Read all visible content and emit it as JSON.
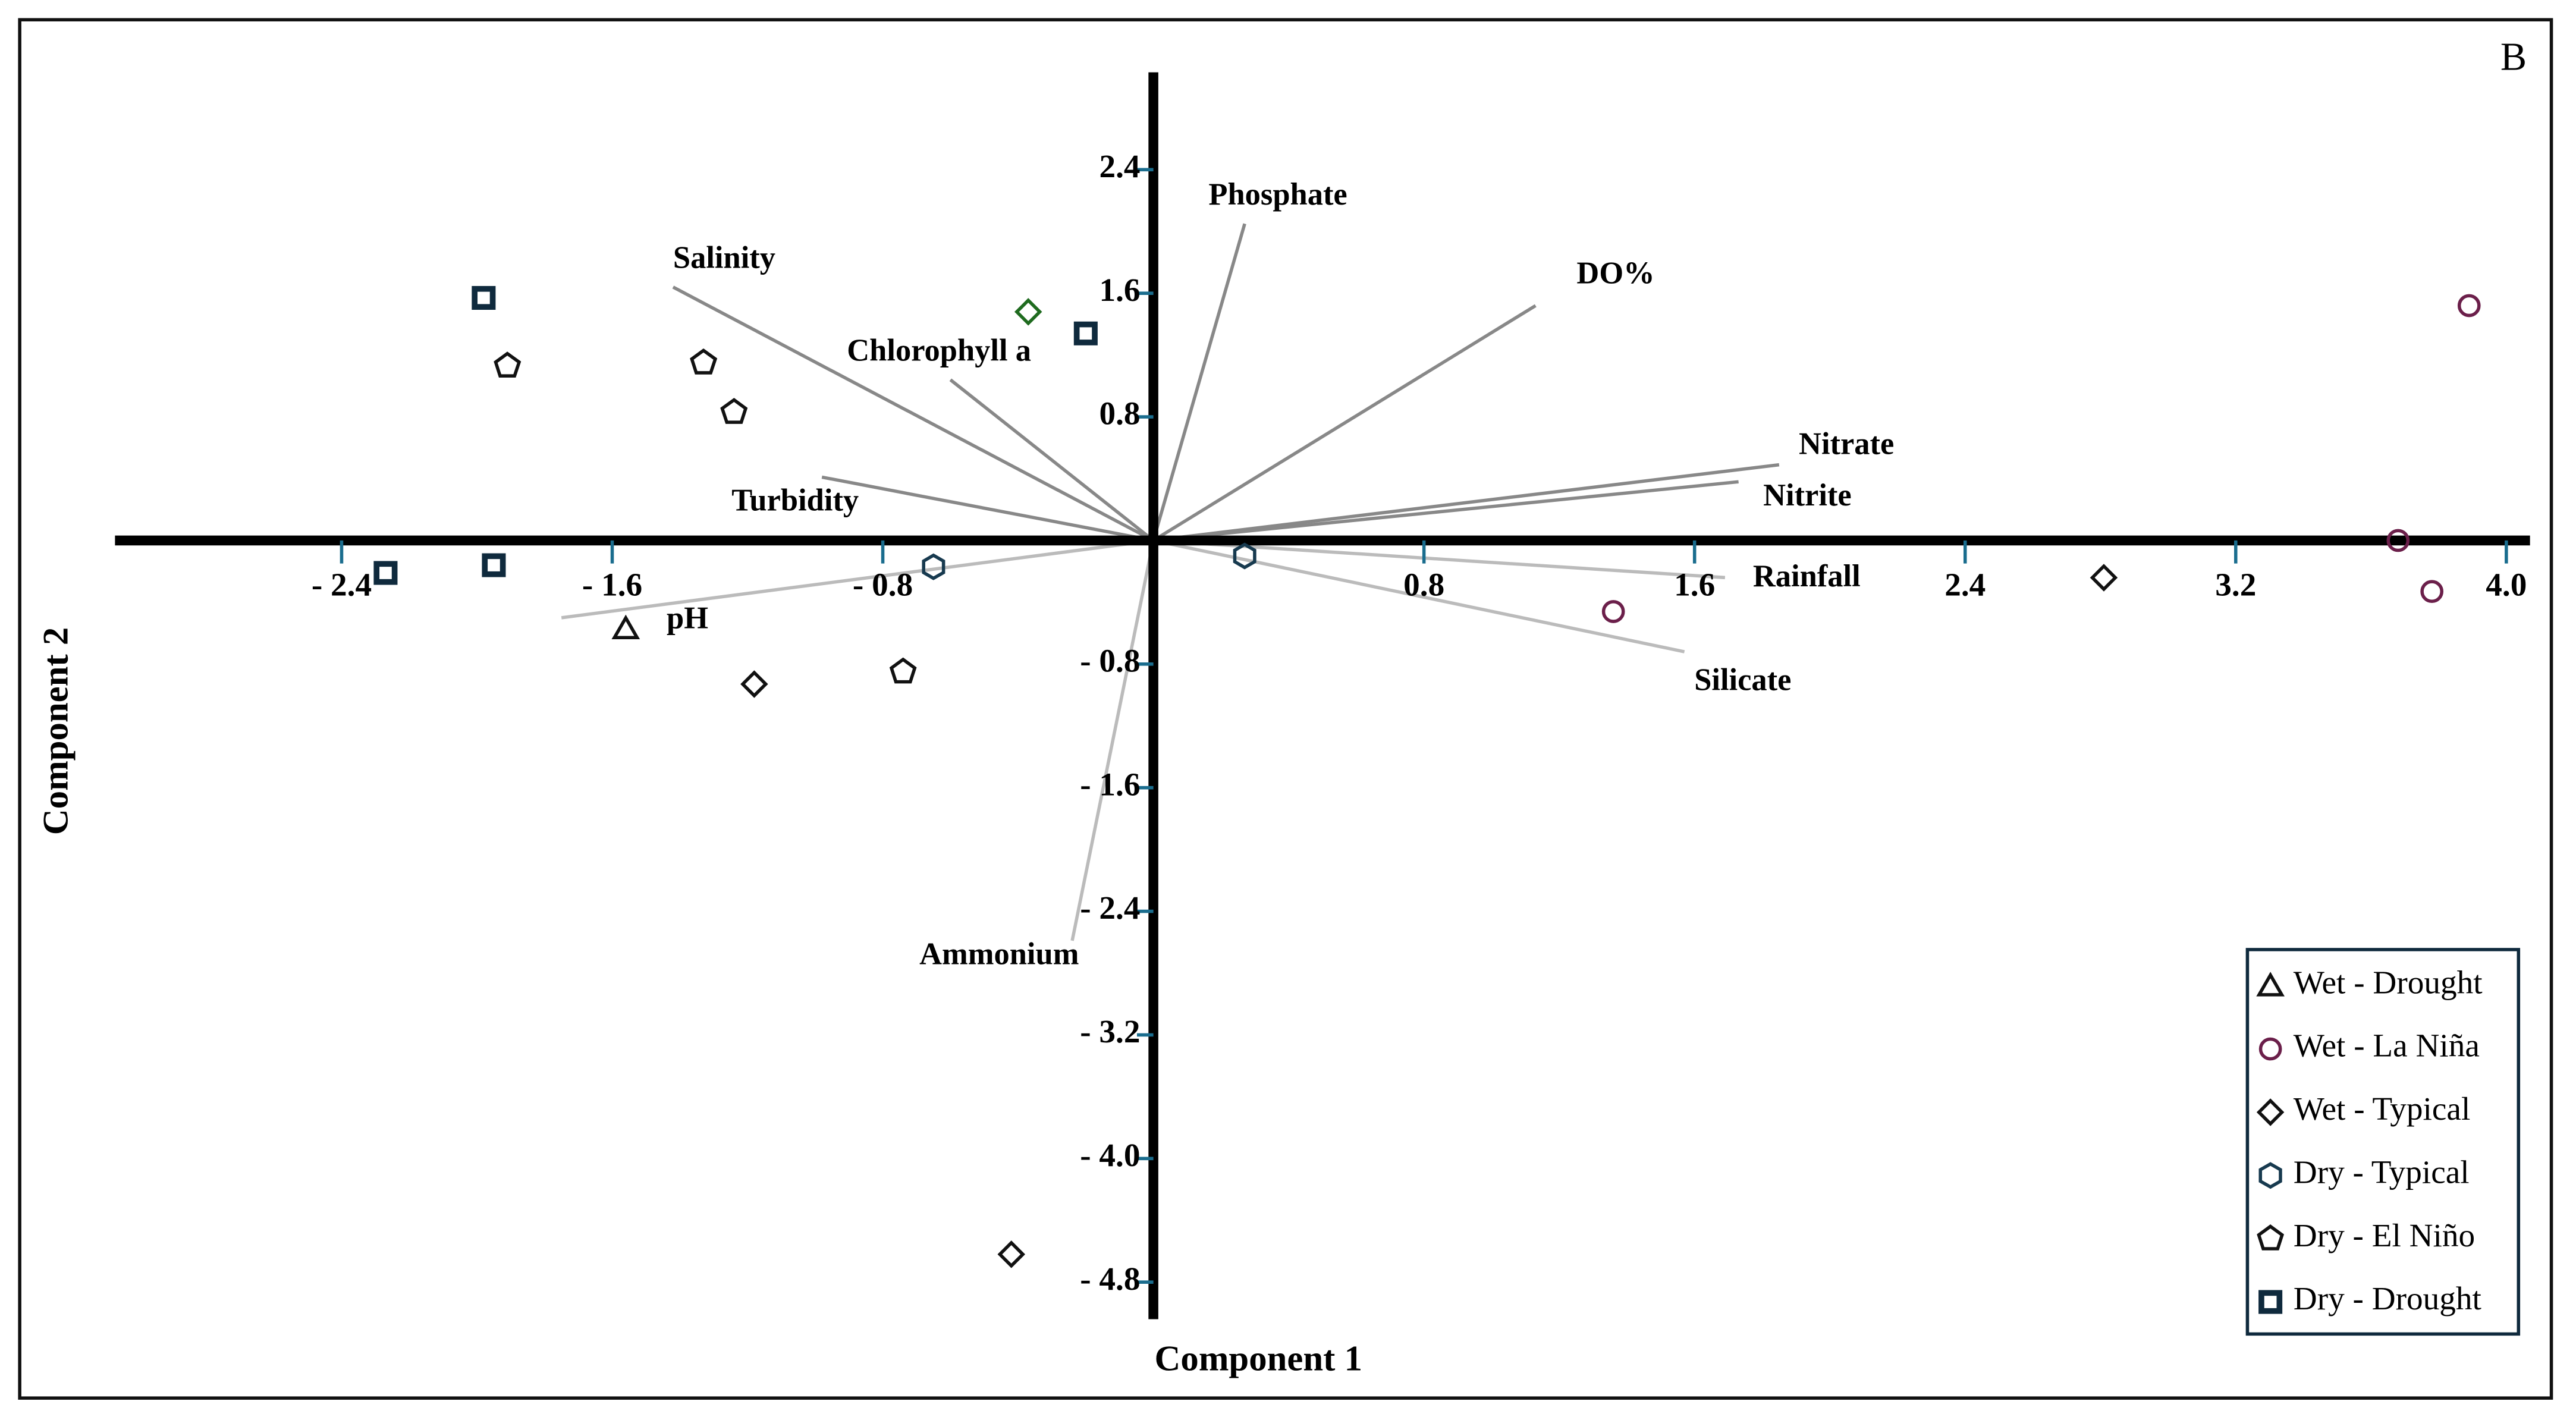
{
  "chart_data": {
    "type": "biplot",
    "panel_label": "B",
    "x_label": "Component 1",
    "y_label": "Component 2",
    "xlim": [
      -3.07,
      4.07
    ],
    "ylim": [
      -5.04,
      3.03
    ],
    "xticks": [
      {
        "value": -2.4,
        "label": "- 2.4"
      },
      {
        "value": -1.6,
        "label": "- 1.6"
      },
      {
        "value": -0.8,
        "label": "- 0.8"
      },
      0.8,
      1.6,
      2.4,
      3.2,
      {
        "value": 4,
        "label": "4.0"
      }
    ],
    "yticks": [
      2.4,
      1.6,
      0.8,
      {
        "value": -0.8,
        "label": "- 0.8"
      },
      {
        "value": -1.6,
        "label": "- 1.6"
      },
      {
        "value": -2.4,
        "label": "- 2.4"
      },
      {
        "value": -3.2,
        "label": "- 3.2"
      },
      {
        "value": -4,
        "label": "- 4.0"
      },
      {
        "value": -4.8,
        "label": "- 4.8"
      }
    ],
    "legend": "bottom-right",
    "series": [
      {
        "name": "Wet - Drought",
        "marker": "triangle",
        "color": "#111111",
        "x": [
          -1.56
        ],
        "y": [
          -0.57
        ]
      },
      {
        "name": "Wet - La Niña",
        "marker": "circle",
        "color": "#6b1f4a",
        "x": [
          3.89,
          3.68,
          3.78,
          1.36
        ],
        "y": [
          1.52,
          0.0,
          -0.33,
          -0.46
        ]
      },
      {
        "name": "Wet - Typical",
        "marker": "diamond",
        "color": "#111111",
        "colors": [
          "#1f6b1f",
          "#111111",
          "#111111",
          "#111111"
        ],
        "x": [
          -0.37,
          2.81,
          -1.18,
          -0.42
        ],
        "y": [
          1.48,
          -0.24,
          -0.93,
          -4.62
        ]
      },
      {
        "name": "Dry - Typical",
        "marker": "hexagon",
        "color": "#173a4f",
        "x": [
          0.27,
          -0.65
        ],
        "y": [
          -0.1,
          -0.17
        ]
      },
      {
        "name": "Dry - El Niño",
        "marker": "pentagon",
        "color": "#111111",
        "x": [
          -1.91,
          -1.33,
          -1.24,
          -0.74
        ],
        "y": [
          1.13,
          1.15,
          0.83,
          -0.85
        ]
      },
      {
        "name": "Dry - Drought",
        "marker": "square",
        "color": "#0f2a3d",
        "x": [
          -1.98,
          -0.2,
          -2.27,
          -1.95
        ],
        "y": [
          1.57,
          1.34,
          -0.21,
          -0.16
        ]
      }
    ],
    "loadings": [
      {
        "name": "Phosphate",
        "x": 0.27,
        "y": 2.05,
        "color": "#888888"
      },
      {
        "name": "DO%",
        "x": 1.13,
        "y": 1.52,
        "color": "#888888"
      },
      {
        "name": "Salinity",
        "x": -1.42,
        "y": 1.64,
        "color": "#888888"
      },
      {
        "name": "Chlorophyll a",
        "x": -0.6,
        "y": 1.04,
        "color": "#888888"
      },
      {
        "name": "Turbidity",
        "x": -0.98,
        "y": 0.41,
        "color": "#888888"
      },
      {
        "name": "Nitrate",
        "x": 1.85,
        "y": 0.49,
        "color": "#888888"
      },
      {
        "name": "Nitrite",
        "x": 1.73,
        "y": 0.38,
        "color": "#888888"
      },
      {
        "name": "Rainfall",
        "x": 1.69,
        "y": -0.24,
        "color": "#bbbbbb"
      },
      {
        "name": "Silicate",
        "x": 1.57,
        "y": -0.72,
        "color": "#bbbbbb"
      },
      {
        "name": "pH",
        "x": -1.75,
        "y": -0.5,
        "color": "#bbbbbb"
      },
      {
        "name": "Ammonium",
        "x": -0.24,
        "y": -2.59,
        "color": "#bbbbbb"
      }
    ]
  }
}
